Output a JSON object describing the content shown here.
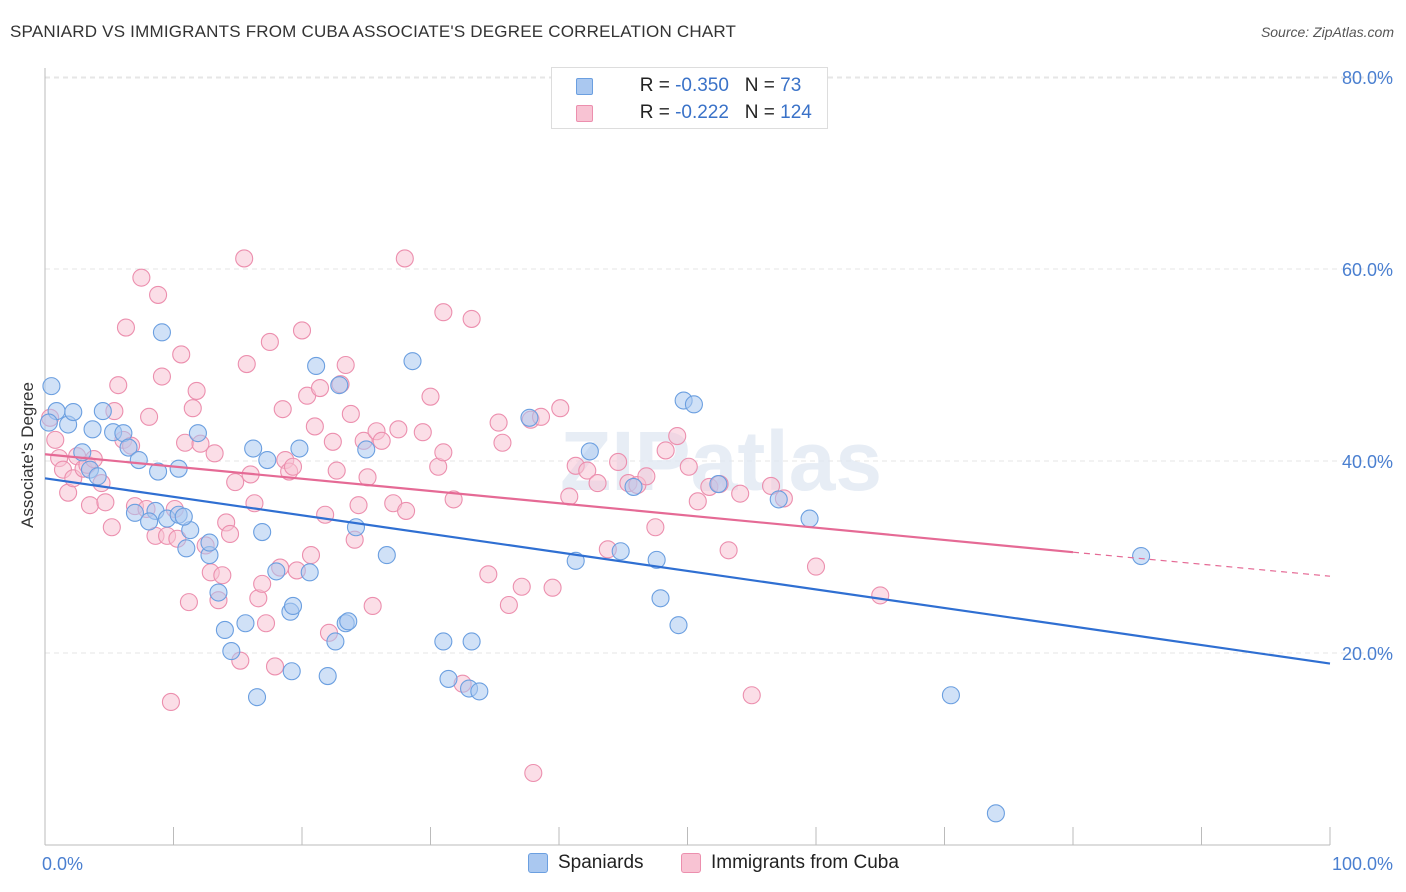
{
  "title": "SPANIARD VS IMMIGRANTS FROM CUBA ASSOCIATE'S DEGREE CORRELATION CHART",
  "source": "Source: ZipAtlas.com",
  "watermark": "ZIPatlas",
  "legend_top": [
    {
      "r_label": "R = ",
      "r_value": "-0.350",
      "n_label": "N = ",
      "n_value": "73",
      "color": "#aac8f0",
      "stroke": "#6b9fe0"
    },
    {
      "r_label": "R = ",
      "r_value": "-0.222",
      "n_label": "N = ",
      "n_value": "124",
      "color": "#f8c3d3",
      "stroke": "#ec8fae"
    }
  ],
  "legend_bottom": [
    {
      "label": "Spaniards",
      "color": "#aac8f0",
      "stroke": "#6b9fe0"
    },
    {
      "label": "Immigrants from Cuba",
      "color": "#f8c3d3",
      "stroke": "#ec8fae"
    }
  ],
  "colors": {
    "blue_line": "#2f6fd2",
    "pink_line": "#e56a95",
    "axis_text": "#4a7fd0",
    "grid": "#e6e6e6"
  },
  "chart_data": {
    "type": "scatter",
    "title": "SPANIARD VS IMMIGRANTS FROM CUBA ASSOCIATE'S DEGREE CORRELATION CHART",
    "xlabel": "",
    "ylabel": "Associate's Degree",
    "xlim": [
      0,
      100
    ],
    "ylim": [
      0,
      83
    ],
    "x_tick_labels": [
      "0.0%",
      "100.0%"
    ],
    "y_ticks": [
      20,
      40,
      60,
      80
    ],
    "y_tick_labels": [
      "20.0%",
      "40.0%",
      "60.0%",
      "80.0%"
    ],
    "grid": true,
    "legend_position": "top-center",
    "series": [
      {
        "name": "Spaniards",
        "points": [
          [
            0.5,
            47.8
          ],
          [
            0.9,
            45.2
          ],
          [
            1.8,
            43.8
          ],
          [
            0.3,
            44.0
          ],
          [
            2.2,
            45.1
          ],
          [
            2.9,
            40.9
          ],
          [
            3.7,
            43.3
          ],
          [
            4.5,
            45.2
          ],
          [
            5.3,
            43.0
          ],
          [
            6.1,
            42.9
          ],
          [
            6.5,
            41.4
          ],
          [
            3.5,
            39.1
          ],
          [
            4.1,
            38.4
          ],
          [
            7.3,
            40.1
          ],
          [
            8.8,
            38.9
          ],
          [
            10.4,
            39.2
          ],
          [
            11.9,
            42.9
          ],
          [
            7.0,
            34.6
          ],
          [
            8.6,
            34.8
          ],
          [
            9.5,
            34.0
          ],
          [
            10.4,
            34.4
          ],
          [
            11.3,
            32.8
          ],
          [
            11.0,
            30.9
          ],
          [
            12.8,
            30.2
          ],
          [
            13.5,
            26.3
          ],
          [
            14.0,
            22.4
          ],
          [
            14.5,
            20.2
          ],
          [
            15.6,
            23.1
          ],
          [
            16.5,
            15.4
          ],
          [
            16.2,
            41.3
          ],
          [
            16.9,
            32.6
          ],
          [
            17.3,
            40.1
          ],
          [
            18.0,
            28.5
          ],
          [
            19.1,
            24.3
          ],
          [
            19.3,
            24.9
          ],
          [
            19.2,
            18.1
          ],
          [
            19.8,
            41.3
          ],
          [
            20.6,
            28.4
          ],
          [
            21.1,
            49.9
          ],
          [
            22.0,
            17.6
          ],
          [
            22.6,
            21.2
          ],
          [
            22.9,
            47.9
          ],
          [
            23.4,
            23.1
          ],
          [
            23.6,
            23.3
          ],
          [
            24.2,
            33.1
          ],
          [
            25.0,
            41.2
          ],
          [
            26.6,
            30.2
          ],
          [
            28.6,
            50.4
          ],
          [
            31.0,
            21.2
          ],
          [
            33.2,
            21.2
          ],
          [
            31.4,
            17.3
          ],
          [
            33.0,
            16.3
          ],
          [
            33.8,
            16.0
          ],
          [
            37.7,
            44.5
          ],
          [
            41.3,
            29.6
          ],
          [
            42.4,
            41.0
          ],
          [
            44.8,
            30.6
          ],
          [
            45.8,
            37.3
          ],
          [
            47.6,
            29.7
          ],
          [
            47.9,
            25.7
          ],
          [
            49.3,
            22.9
          ],
          [
            49.7,
            46.3
          ],
          [
            50.5,
            45.9
          ],
          [
            52.4,
            37.6
          ],
          [
            57.1,
            36.0
          ],
          [
            59.5,
            34.0
          ],
          [
            70.5,
            15.6
          ],
          [
            74.0,
            3.3
          ],
          [
            85.3,
            30.1
          ],
          [
            12.8,
            31.5
          ],
          [
            8.1,
            33.7
          ],
          [
            10.8,
            34.2
          ],
          [
            9.1,
            53.4
          ]
        ]
      },
      {
        "name": "Immigrants from Cuba",
        "points": [
          [
            0.4,
            44.5
          ],
          [
            0.8,
            42.2
          ],
          [
            1.1,
            40.3
          ],
          [
            1.4,
            39.1
          ],
          [
            1.8,
            36.7
          ],
          [
            2.2,
            38.2
          ],
          [
            2.5,
            40.5
          ],
          [
            3.0,
            39.2
          ],
          [
            3.3,
            39.6
          ],
          [
            3.5,
            35.4
          ],
          [
            3.8,
            40.2
          ],
          [
            4.4,
            37.7
          ],
          [
            4.7,
            35.7
          ],
          [
            5.2,
            33.1
          ],
          [
            5.4,
            45.2
          ],
          [
            5.7,
            47.9
          ],
          [
            6.1,
            42.2
          ],
          [
            6.3,
            53.9
          ],
          [
            6.7,
            41.6
          ],
          [
            7.0,
            35.3
          ],
          [
            7.5,
            59.1
          ],
          [
            7.9,
            35.0
          ],
          [
            8.1,
            44.6
          ],
          [
            8.6,
            32.2
          ],
          [
            8.8,
            57.3
          ],
          [
            9.1,
            48.8
          ],
          [
            9.5,
            32.2
          ],
          [
            9.8,
            14.9
          ],
          [
            10.1,
            35.0
          ],
          [
            10.3,
            31.9
          ],
          [
            10.6,
            51.1
          ],
          [
            10.9,
            41.9
          ],
          [
            11.2,
            25.3
          ],
          [
            11.5,
            45.5
          ],
          [
            11.8,
            47.3
          ],
          [
            12.1,
            41.8
          ],
          [
            12.5,
            31.2
          ],
          [
            12.9,
            28.4
          ],
          [
            13.2,
            40.8
          ],
          [
            13.5,
            25.5
          ],
          [
            13.8,
            28.1
          ],
          [
            14.1,
            33.6
          ],
          [
            14.4,
            32.4
          ],
          [
            14.8,
            37.8
          ],
          [
            15.2,
            19.2
          ],
          [
            15.5,
            61.1
          ],
          [
            15.7,
            50.1
          ],
          [
            16.0,
            38.6
          ],
          [
            16.3,
            35.6
          ],
          [
            16.6,
            25.7
          ],
          [
            16.9,
            27.2
          ],
          [
            17.2,
            23.1
          ],
          [
            17.5,
            52.4
          ],
          [
            17.9,
            18.6
          ],
          [
            18.3,
            28.9
          ],
          [
            18.5,
            45.4
          ],
          [
            18.7,
            40.1
          ],
          [
            19.0,
            38.9
          ],
          [
            19.3,
            39.4
          ],
          [
            19.6,
            28.6
          ],
          [
            20.0,
            53.6
          ],
          [
            20.4,
            46.8
          ],
          [
            20.7,
            30.2
          ],
          [
            21.0,
            43.6
          ],
          [
            21.4,
            47.6
          ],
          [
            21.8,
            34.4
          ],
          [
            22.1,
            22.1
          ],
          [
            22.4,
            42.0
          ],
          [
            22.7,
            39.0
          ],
          [
            23.0,
            48.0
          ],
          [
            23.4,
            50.0
          ],
          [
            23.8,
            44.9
          ],
          [
            24.1,
            31.8
          ],
          [
            24.4,
            35.4
          ],
          [
            24.8,
            42.1
          ],
          [
            25.1,
            38.3
          ],
          [
            25.5,
            24.9
          ],
          [
            25.8,
            43.1
          ],
          [
            26.2,
            42.1
          ],
          [
            27.1,
            35.6
          ],
          [
            27.5,
            43.3
          ],
          [
            28.1,
            34.8
          ],
          [
            28.0,
            61.1
          ],
          [
            29.4,
            43.0
          ],
          [
            30.0,
            46.7
          ],
          [
            30.6,
            39.4
          ],
          [
            31.0,
            40.9
          ],
          [
            31.8,
            36.0
          ],
          [
            32.5,
            16.8
          ],
          [
            31.0,
            55.5
          ],
          [
            33.2,
            54.8
          ],
          [
            34.5,
            28.2
          ],
          [
            35.3,
            44.0
          ],
          [
            35.6,
            41.9
          ],
          [
            36.1,
            25.0
          ],
          [
            37.1,
            26.9
          ],
          [
            37.8,
            44.3
          ],
          [
            38.6,
            44.6
          ],
          [
            39.5,
            26.8
          ],
          [
            40.1,
            45.5
          ],
          [
            40.8,
            36.3
          ],
          [
            41.3,
            39.5
          ],
          [
            42.2,
            39.0
          ],
          [
            43.0,
            37.7
          ],
          [
            43.8,
            30.8
          ],
          [
            44.6,
            39.9
          ],
          [
            45.4,
            37.7
          ],
          [
            46.1,
            37.5
          ],
          [
            46.8,
            38.4
          ],
          [
            47.5,
            33.1
          ],
          [
            48.3,
            41.1
          ],
          [
            49.2,
            42.6
          ],
          [
            50.1,
            39.4
          ],
          [
            50.8,
            35.8
          ],
          [
            51.7,
            37.3
          ],
          [
            52.5,
            37.6
          ],
          [
            53.2,
            30.7
          ],
          [
            54.1,
            36.6
          ],
          [
            55.0,
            15.6
          ],
          [
            56.5,
            37.4
          ],
          [
            57.5,
            36.1
          ],
          [
            38.0,
            7.5
          ],
          [
            60.0,
            29.0
          ],
          [
            65.0,
            26.0
          ]
        ]
      }
    ],
    "trendlines": [
      {
        "series": "Spaniards",
        "x": [
          0,
          100
        ],
        "y": [
          38.2,
          18.9
        ],
        "style": "solid"
      },
      {
        "series": "Immigrants from Cuba",
        "x": [
          0,
          80
        ],
        "y": [
          40.7,
          30.5
        ],
        "style": "solid"
      },
      {
        "series": "Immigrants from Cuba",
        "x": [
          80,
          100
        ],
        "y": [
          30.5,
          28.0
        ],
        "style": "dashed"
      }
    ]
  }
}
